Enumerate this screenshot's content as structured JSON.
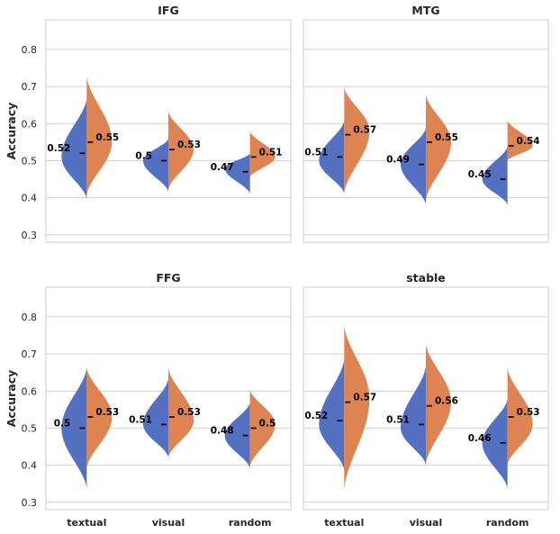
{
  "chart_data": [
    {
      "type": "violin",
      "title": "IFG",
      "ylabel": "Accuracy",
      "ylim": [
        0.28,
        0.88
      ],
      "yticks": [
        "0.3",
        "0.4",
        "0.5",
        "0.6",
        "0.7",
        "0.8"
      ],
      "categories": [
        "textual",
        "visual",
        "random"
      ],
      "show_xticks": false,
      "show_yticks": true,
      "series": [
        {
          "name": "left",
          "color": "#5470c0",
          "medians": [
            0.52,
            0.5,
            0.47
          ],
          "labels": [
            "0.52",
            "0.5",
            "0.47"
          ],
          "extent": [
            [
              0.395,
              0.67
            ],
            [
              0.415,
              0.56
            ],
            [
              0.41,
              0.52
            ]
          ],
          "peak": [
            0.51,
            0.5,
            0.48
          ]
        },
        {
          "name": "right",
          "color": "#dd8452",
          "medians": [
            0.55,
            0.53,
            0.51
          ],
          "labels": [
            "0.55",
            "0.53",
            "0.51"
          ],
          "extent": [
            [
              0.405,
              0.73
            ],
            [
              0.42,
              0.635
            ],
            [
              0.455,
              0.58
            ]
          ],
          "peak": [
            0.55,
            0.53,
            0.51
          ]
        }
      ]
    },
    {
      "type": "violin",
      "title": "MTG",
      "ylabel": "",
      "ylim": [
        0.28,
        0.88
      ],
      "yticks": [],
      "categories": [
        "textual",
        "visual",
        "random"
      ],
      "show_xticks": false,
      "show_yticks": false,
      "series": [
        {
          "name": "left",
          "color": "#5470c0",
          "medians": [
            0.51,
            0.49,
            0.45
          ],
          "labels": [
            "0.51",
            "0.49",
            "0.45"
          ],
          "extent": [
            [
              0.41,
              0.61
            ],
            [
              0.38,
              0.59
            ],
            [
              0.38,
              0.54
            ]
          ],
          "peak": [
            0.5,
            0.49,
            0.45
          ]
        },
        {
          "name": "right",
          "color": "#dd8452",
          "medians": [
            0.57,
            0.55,
            0.54
          ],
          "labels": [
            "0.57",
            "0.55",
            "0.54"
          ],
          "extent": [
            [
              0.41,
              0.7
            ],
            [
              0.39,
              0.68
            ],
            [
              0.5,
              0.61
            ]
          ],
          "peak": [
            0.58,
            0.55,
            0.54
          ]
        }
      ]
    },
    {
      "type": "violin",
      "title": "FFG",
      "ylabel": "Accuracy",
      "ylim": [
        0.28,
        0.88
      ],
      "yticks": [
        "0.3",
        "0.4",
        "0.5",
        "0.6",
        "0.7",
        "0.8"
      ],
      "categories": [
        "textual",
        "visual",
        "random"
      ],
      "show_xticks": true,
      "show_yticks": true,
      "series": [
        {
          "name": "left",
          "color": "#5470c0",
          "medians": [
            0.5,
            0.51,
            0.48
          ],
          "labels": [
            "0.5",
            "0.51",
            "0.48"
          ],
          "extent": [
            [
              0.335,
              0.665
            ],
            [
              0.42,
              0.635
            ],
            [
              0.39,
              0.57
            ]
          ],
          "peak": [
            0.5,
            0.51,
            0.48
          ]
        },
        {
          "name": "right",
          "color": "#dd8452",
          "medians": [
            0.53,
            0.53,
            0.5
          ],
          "labels": [
            "0.53",
            "0.53",
            "0.5"
          ],
          "extent": [
            [
              0.39,
              0.665
            ],
            [
              0.42,
              0.665
            ],
            [
              0.395,
              0.605
            ]
          ],
          "peak": [
            0.53,
            0.52,
            0.51
          ]
        }
      ]
    },
    {
      "type": "violin",
      "title": "stable",
      "ylabel": "",
      "ylim": [
        0.28,
        0.88
      ],
      "yticks": [],
      "categories": [
        "textual",
        "visual",
        "random"
      ],
      "show_xticks": true,
      "show_yticks": false,
      "series": [
        {
          "name": "left",
          "color": "#5470c0",
          "medians": [
            0.52,
            0.51,
            0.46
          ],
          "labels": [
            "0.52",
            "0.51",
            "0.46"
          ],
          "extent": [
            [
              0.385,
              0.69
            ],
            [
              0.4,
              0.67
            ],
            [
              0.335,
              0.58
            ]
          ],
          "peak": [
            0.51,
            0.5,
            0.46
          ]
        },
        {
          "name": "right",
          "color": "#dd8452",
          "medians": [
            0.57,
            0.56,
            0.53
          ],
          "labels": [
            "0.57",
            "0.56",
            "0.53"
          ],
          "extent": [
            [
              0.33,
              0.78
            ],
            [
              0.4,
              0.73
            ],
            [
              0.4,
              0.665
            ]
          ],
          "peak": [
            0.58,
            0.57,
            0.51
          ]
        }
      ]
    }
  ]
}
